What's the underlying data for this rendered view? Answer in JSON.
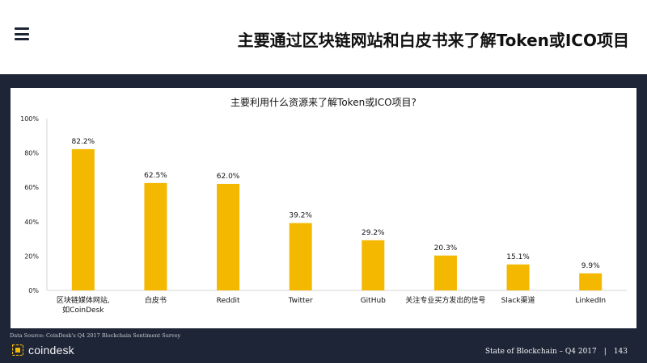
{
  "slide": {
    "title": "主要通过区块链网站和白皮书来了解Token或ICO项目",
    "source": "Data Source: CoinDesk's Q4 2017 Blockchain Sentiment Survey",
    "logo_text": "coindesk",
    "footer_left": "State of Blockchain – Q4 2017",
    "footer_sep": "|",
    "page_number": "143"
  },
  "colors": {
    "bar": "#f5b800",
    "band": "#1e2536"
  },
  "chart_data": {
    "type": "bar",
    "title": "主要利用什么资源来了解Token或ICO项目?",
    "categories": [
      [
        "区块链媒体网站,",
        "如CoinDesk"
      ],
      [
        "白皮书"
      ],
      [
        "Reddit"
      ],
      [
        "Twitter"
      ],
      [
        "GitHub"
      ],
      [
        "关注专业买方发出的信号"
      ],
      [
        "Slack渠道"
      ],
      [
        "LinkedIn"
      ]
    ],
    "values": [
      82.2,
      62.5,
      62.0,
      39.2,
      29.2,
      20.3,
      15.1,
      9.9
    ],
    "value_labels": [
      "82.2%",
      "62.5%",
      "62.0%",
      "39.2%",
      "29.2%",
      "20.3%",
      "15.1%",
      "9.9%"
    ],
    "ylim": [
      0,
      100
    ],
    "yticks": [
      0,
      20,
      40,
      60,
      80,
      100
    ],
    "ytick_labels": [
      "0%",
      "20%",
      "40%",
      "60%",
      "80%",
      "100%"
    ],
    "grid": false,
    "legend": "none"
  }
}
